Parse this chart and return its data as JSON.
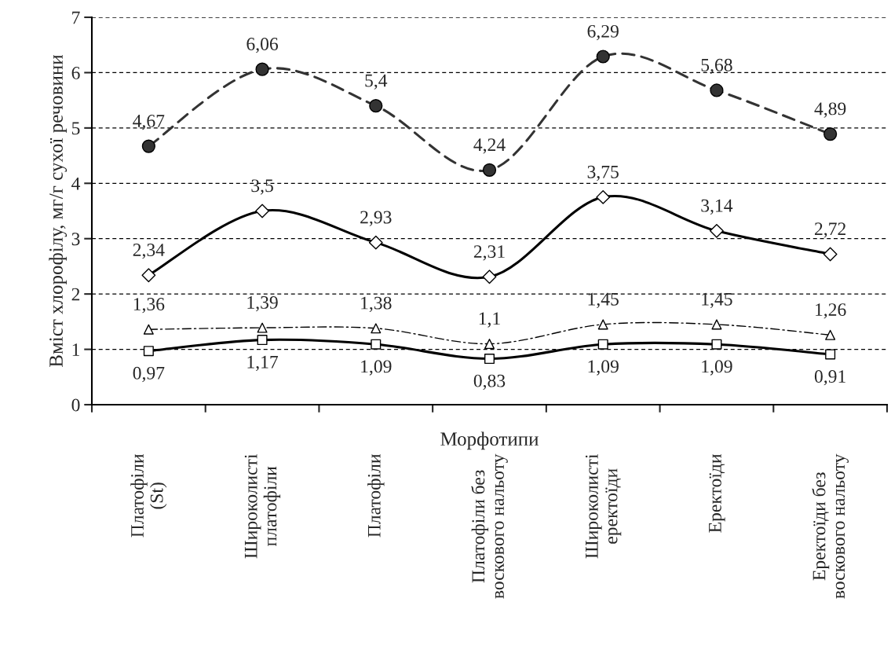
{
  "chart_data": {
    "type": "line",
    "ylabel": "Вміст хлорофілу, мг/г сухої речовини",
    "xlabel": "Морфотипи",
    "categories": [
      "Платофіли\n(St)",
      "Широколисті\nплатофіли",
      "Платофіли",
      "Платофіли без\nвоскового нальоту",
      "Широколисті\nеректоїди",
      "Еректоїди",
      "Еректоїди без\nвоскового нальоту"
    ],
    "ylim": [
      0,
      7
    ],
    "yticks": [
      0,
      1,
      2,
      3,
      4,
      5,
      6,
      7
    ],
    "grid": "y",
    "series": [
      {
        "color": "#333333",
        "marker": "circle",
        "line_style": "dashed",
        "values": [
          4.67,
          6.06,
          5.4,
          4.24,
          6.29,
          5.68,
          4.89
        ],
        "value_labels": [
          "4,67",
          "6,06",
          "5,4",
          "4,24",
          "6,29",
          "5,68",
          "4,89"
        ]
      },
      {
        "color": "#000000",
        "marker": "diamond",
        "line_style": "solid",
        "values": [
          2.34,
          3.5,
          2.93,
          2.31,
          3.75,
          3.14,
          2.72
        ],
        "value_labels": [
          "2,34",
          "3,5",
          "2,93",
          "2,31",
          "3,75",
          "3,14",
          "2,72"
        ]
      },
      {
        "color": "#000000",
        "marker": "triangle",
        "line_style": "dashdot",
        "values": [
          1.36,
          1.39,
          1.38,
          1.1,
          1.45,
          1.45,
          1.26
        ],
        "value_labels": [
          "1,36",
          "1,39",
          "1,38",
          "1,1",
          "1,45",
          "1,45",
          "1,26"
        ]
      },
      {
        "color": "#000000",
        "marker": "square",
        "line_style": "solid",
        "values": [
          0.97,
          1.17,
          1.09,
          0.83,
          1.09,
          1.09,
          0.91
        ],
        "value_labels": [
          "0,97",
          "1,17",
          "1,09",
          "0,83",
          "1,09",
          "1,09",
          "0,91"
        ]
      }
    ]
  }
}
